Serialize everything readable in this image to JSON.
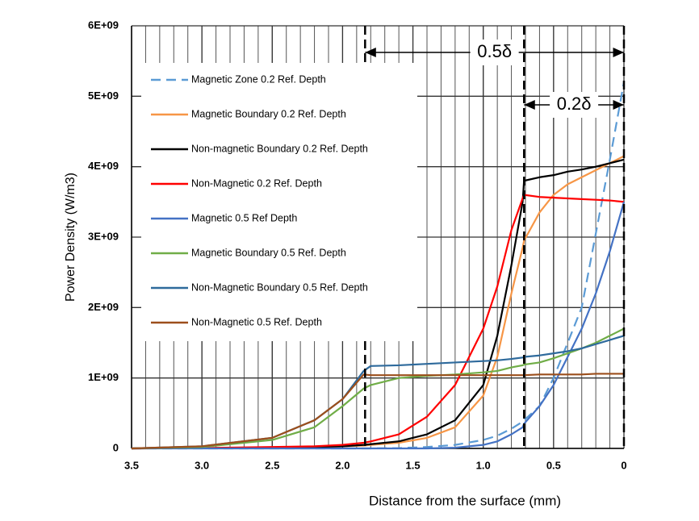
{
  "chart_data": {
    "type": "line",
    "x_label": "Distance from the surface (mm)",
    "y_label": "Power Density (W/m3)",
    "xlim": [
      3.5,
      0
    ],
    "xticks": [
      3.5,
      {
        "value": 3,
        "label": "3.0"
      },
      2.5,
      {
        "value": 2,
        "label": "2.0"
      },
      1.5,
      {
        "value": 1,
        "label": "1.0"
      },
      0.5,
      0
    ],
    "xminor": 0.1,
    "ylim": [
      0,
      6000000000.0
    ],
    "yticks": [
      0,
      {
        "value": 1000000000.0,
        "label": "1E+09"
      },
      {
        "value": 2000000000.0,
        "label": "2E+09"
      },
      {
        "value": 3000000000.0,
        "label": "3E+09"
      },
      {
        "value": 4000000000.0,
        "label": "4E+09"
      },
      {
        "value": 5000000000.0,
        "label": "5E+09"
      },
      {
        "value": 6000000000.0,
        "label": "6E+09"
      }
    ],
    "grid": true,
    "legend": "upper left",
    "vlines": [
      1.84,
      0.71,
      0
    ],
    "annotations": [
      {
        "text": "0.5δ",
        "from": 1.84,
        "to": 0
      },
      {
        "text": "0.2δ",
        "from": 0.71,
        "to": 0
      }
    ],
    "x": [
      3.5,
      3.0,
      2.5,
      2.2,
      2.0,
      1.85,
      1.8,
      1.6,
      1.4,
      1.2,
      1.0,
      0.9,
      0.8,
      0.72,
      0.71,
      0.6,
      0.5,
      0.4,
      0.3,
      0.2,
      0.1,
      0
    ],
    "series": [
      {
        "name": "Magnetic Zone 0.2 Ref. Depth",
        "color": "#5b9bd5",
        "dash": true,
        "values": [
          0,
          0,
          0,
          0,
          0,
          0,
          0,
          5000000.0,
          20000000.0,
          50000000.0,
          120000000.0,
          180000000.0,
          280000000.0,
          380000000.0,
          400000000.0,
          600000000.0,
          1000000000.0,
          1500000000.0,
          2000000000.0,
          3050000000.0,
          4100000000.0,
          5200000000.0
        ]
      },
      {
        "name": "Magnetic Boundary 0.2 Ref. Depth",
        "color": "#f79646",
        "values": [
          0,
          5000000.0,
          10000000.0,
          20000000.0,
          30000000.0,
          40000000.0,
          50000000.0,
          80000000.0,
          150000000.0,
          300000000.0,
          750000000.0,
          1300000000.0,
          2200000000.0,
          2850000000.0,
          2950000000.0,
          3350000000.0,
          3600000000.0,
          3750000000.0,
          3850000000.0,
          3950000000.0,
          4050000000.0,
          4150000000.0
        ]
      },
      {
        "name": "Non-magnetic Boundary 0.2 Ref. Depth",
        "color": "#000000",
        "values": [
          0,
          5000000.0,
          10000000.0,
          20000000.0,
          30000000.0,
          50000000.0,
          60000000.0,
          100000000.0,
          200000000.0,
          400000000.0,
          900000000.0,
          1600000000.0,
          2600000000.0,
          3500000000.0,
          3800000000.0,
          3850000000.0,
          3880000000.0,
          3930000000.0,
          3960000000.0,
          4000000000.0,
          4050000000.0,
          4100000000.0
        ]
      },
      {
        "name": "Non-Magnetic 0.2 Ref. Depth",
        "color": "#ff0000",
        "values": [
          0,
          5000000.0,
          20000000.0,
          30000000.0,
          50000000.0,
          80000000.0,
          100000000.0,
          200000000.0,
          450000000.0,
          900000000.0,
          1700000000.0,
          2300000000.0,
          3100000000.0,
          3550000000.0,
          3600000000.0,
          3570000000.0,
          3560000000.0,
          3550000000.0,
          3540000000.0,
          3530000000.0,
          3520000000.0,
          3500000000.0
        ]
      },
      {
        "name": "Magnetic 0.5 Ref Depth",
        "color": "#4472c4",
        "values": [
          0,
          0,
          0,
          0,
          0,
          0,
          0,
          0,
          0,
          10000000.0,
          50000000.0,
          100000000.0,
          200000000.0,
          300000000.0,
          350000000.0,
          600000000.0,
          900000000.0,
          1300000000.0,
          1700000000.0,
          2200000000.0,
          2800000000.0,
          3500000000.0
        ]
      },
      {
        "name": "Magnetic Boundary 0.5 Ref. Depth",
        "color": "#70ad47",
        "values": [
          0,
          20000000.0,
          120000000.0,
          300000000.0,
          600000000.0,
          850000000.0,
          900000000.0,
          1000000000.0,
          1030000000.0,
          1050000000.0,
          1080000000.0,
          1100000000.0,
          1150000000.0,
          1180000000.0,
          1190000000.0,
          1220000000.0,
          1280000000.0,
          1350000000.0,
          1420000000.0,
          1500000000.0,
          1600000000.0,
          1700000000.0
        ]
      },
      {
        "name": "Non-Magnetic Boundary 0.5 Ref. Depth",
        "color": "#2e6a9c",
        "values": [
          0,
          30000000.0,
          150000000.0,
          400000000.0,
          700000000.0,
          1100000000.0,
          1170000000.0,
          1180000000.0,
          1200000000.0,
          1220000000.0,
          1240000000.0,
          1250000000.0,
          1270000000.0,
          1290000000.0,
          1300000000.0,
          1320000000.0,
          1350000000.0,
          1380000000.0,
          1420000000.0,
          1480000000.0,
          1540000000.0,
          1600000000.0
        ]
      },
      {
        "name": "Non-Magnetic 0.5 Ref. Depth",
        "color": "#9c4f1c",
        "values": [
          0,
          30000000.0,
          150000000.0,
          400000000.0,
          700000000.0,
          1050000000.0,
          1040000000.0,
          1040000000.0,
          1040000000.0,
          1040000000.0,
          1040000000.0,
          1040000000.0,
          1040000000.0,
          1040000000.0,
          1040000000.0,
          1050000000.0,
          1050000000.0,
          1050000000.0,
          1050000000.0,
          1060000000.0,
          1060000000.0,
          1060000000.0
        ]
      }
    ]
  }
}
